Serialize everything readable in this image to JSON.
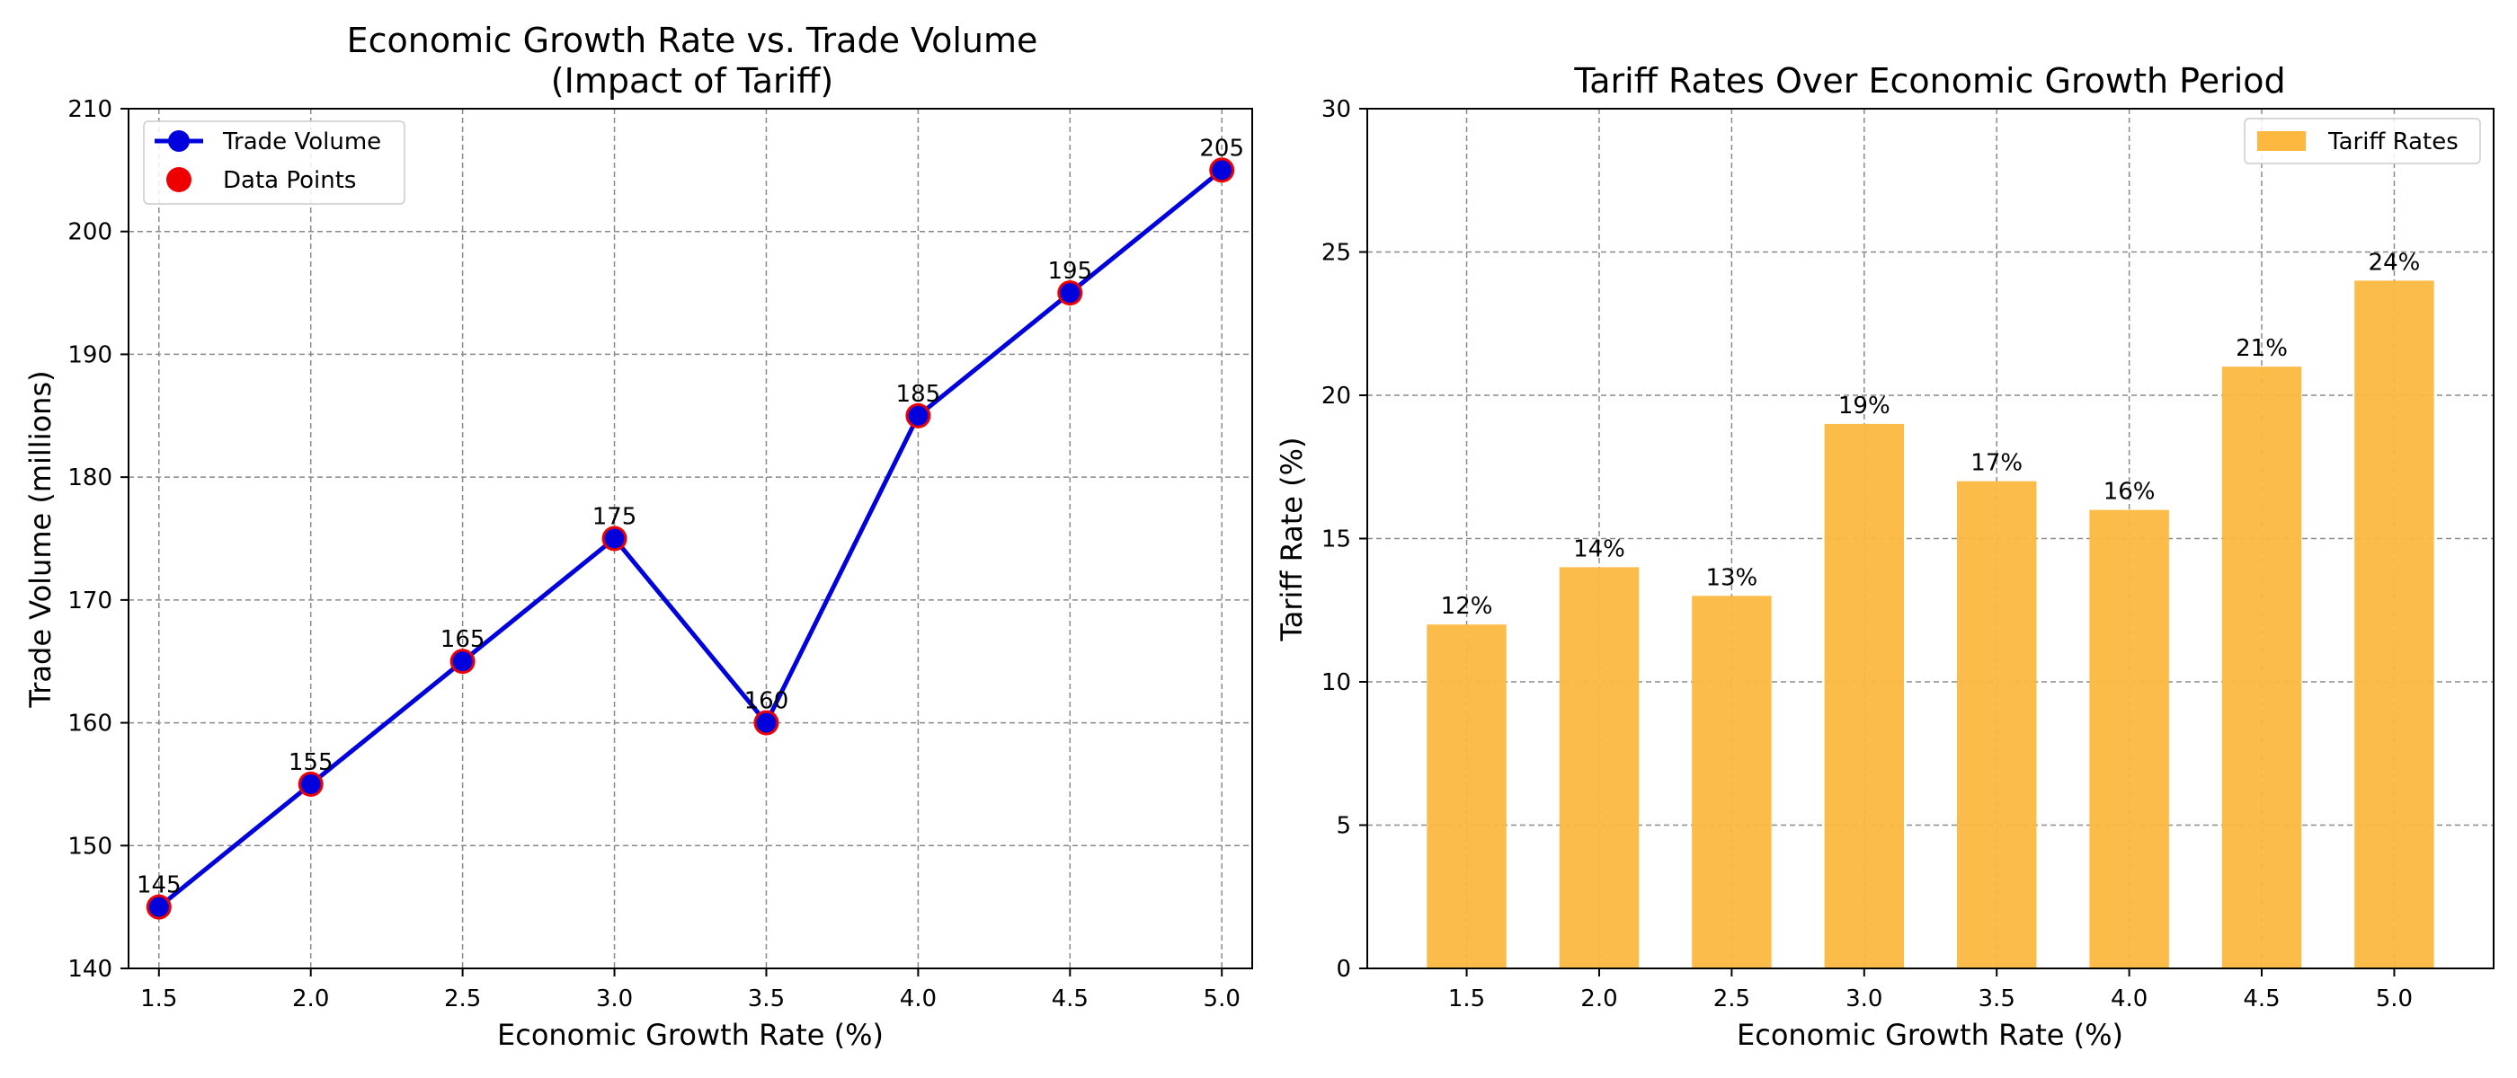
{
  "chart_data": [
    {
      "type": "line",
      "title_line1": "Economic Growth Rate vs. Trade Volume",
      "title_line2": "(Impact of Tariff)",
      "xlabel": "Economic Growth Rate (%)",
      "ylabel": "Trade Volume (millions)",
      "x": [
        1.5,
        2.0,
        2.5,
        3.0,
        3.5,
        4.0,
        4.5,
        5.0
      ],
      "x_tick_labels": [
        "1.5",
        "2.0",
        "2.5",
        "3.0",
        "3.5",
        "4.0",
        "4.5",
        "5.0"
      ],
      "xlim": [
        1.4,
        5.1
      ],
      "ylim": [
        140,
        210
      ],
      "y_ticks": [
        140,
        150,
        160,
        170,
        180,
        190,
        200,
        210
      ],
      "series": [
        {
          "name": "Trade Volume",
          "values": [
            145,
            155,
            165,
            175,
            160,
            185,
            195,
            205
          ],
          "color": "#0000dd"
        }
      ],
      "scatter_name": "Data Points",
      "scatter_color": "#ee0000",
      "data_labels": [
        "145",
        "155",
        "165",
        "175",
        "160",
        "185",
        "195",
        "205"
      ],
      "grid": true,
      "legend": "upper-left"
    },
    {
      "type": "bar",
      "title": "Tariff Rates Over Economic Growth Period",
      "xlabel": "Economic Growth Rate (%)",
      "ylabel": "Tariff Rate (%)",
      "categories": [
        "1.5",
        "2.0",
        "2.5",
        "3.0",
        "3.5",
        "4.0",
        "4.5",
        "5.0"
      ],
      "series": [
        {
          "name": "Tariff Rates",
          "values": [
            12,
            14,
            13,
            19,
            17,
            16,
            21,
            24
          ],
          "color": "#fcb83f"
        }
      ],
      "data_labels": [
        "12%",
        "14%",
        "13%",
        "19%",
        "17%",
        "16%",
        "21%",
        "24%"
      ],
      "ylim": [
        0,
        30
      ],
      "y_ticks": [
        0,
        5,
        10,
        15,
        20,
        25,
        30
      ],
      "grid": true,
      "legend": "upper-right"
    }
  ]
}
